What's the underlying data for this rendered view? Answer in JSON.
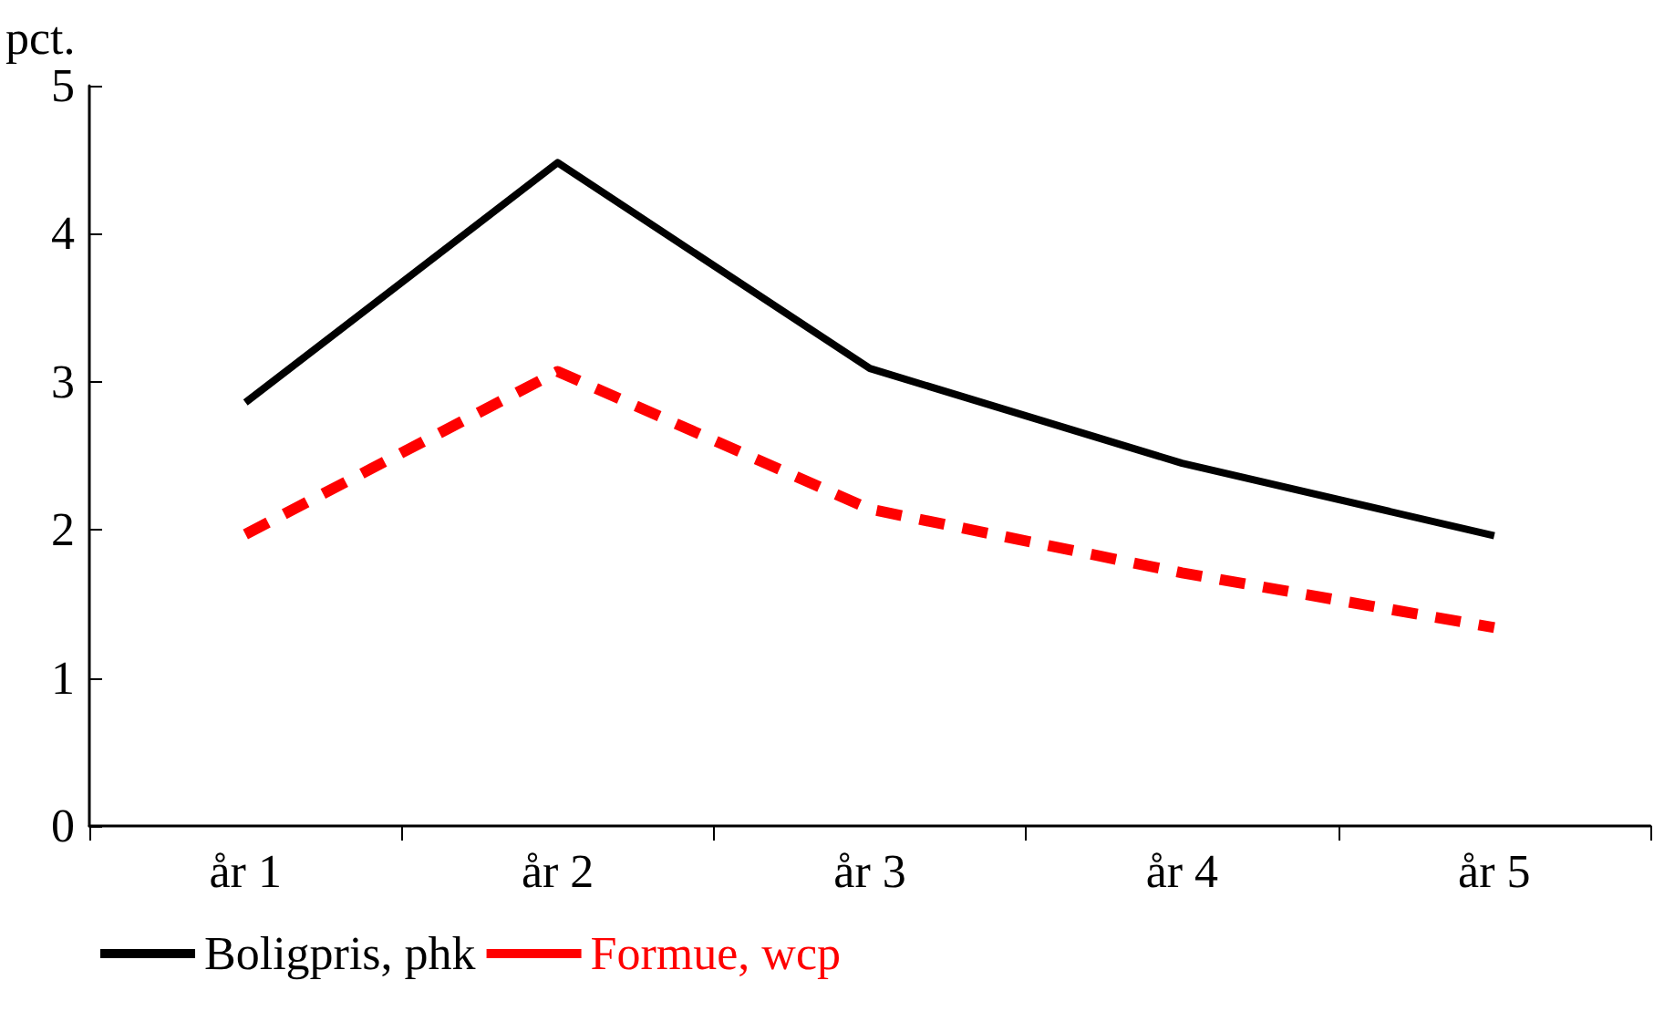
{
  "chart_data": {
    "type": "line",
    "ylabel": "pct.",
    "categories": [
      "år 1",
      "år 2",
      "år 3",
      "år 4",
      "år 5"
    ],
    "series": [
      {
        "name": "Boligpris, phk",
        "color": "#000000",
        "values": [
          2.86,
          4.48,
          3.09,
          2.45,
          1.96
        ],
        "line_style": "solid"
      },
      {
        "name": "Formue, wcp",
        "color": "#ff0000",
        "values": [
          1.97,
          3.07,
          2.14,
          1.71,
          1.34
        ],
        "line_style": "dashed"
      }
    ],
    "ylim": [
      0,
      5
    ],
    "yticks": [
      0,
      1,
      2,
      3,
      4,
      5
    ],
    "grid": false,
    "legend": "bottom left",
    "marker": "none"
  }
}
